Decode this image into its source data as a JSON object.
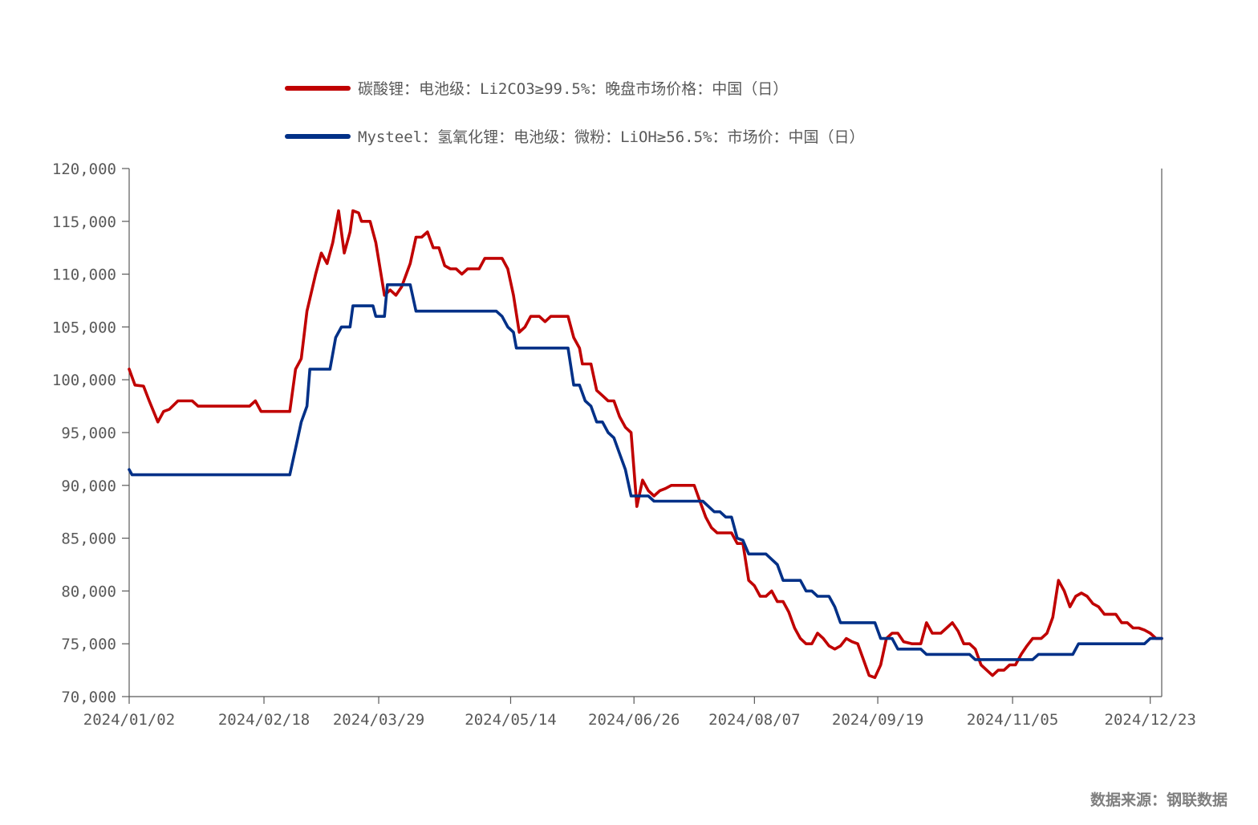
{
  "chart_data": {
    "type": "line",
    "title": "",
    "xlabel": "",
    "ylabel": "",
    "ylim": [
      70000,
      120000
    ],
    "y_ticks": [
      70000,
      75000,
      80000,
      85000,
      90000,
      95000,
      100000,
      105000,
      110000,
      115000,
      120000
    ],
    "y_tick_labels": [
      "70,000",
      "75,000",
      "80,000",
      "85,000",
      "90,000",
      "95,000",
      "100,000",
      "105,000",
      "110,000",
      "115,000",
      "120,000"
    ],
    "x_range": [
      "2024-01-02",
      "2024-12-27"
    ],
    "x_tick_labels": [
      "2024/01/02",
      "2024/02/18",
      "2024/03/29",
      "2024/05/14",
      "2024/06/26",
      "2024/08/07",
      "2024/09/19",
      "2024/11/05",
      "2024/12/23"
    ],
    "x_tick_dates": [
      "2024-01-02",
      "2024-02-18",
      "2024-03-29",
      "2024-05-14",
      "2024-06-26",
      "2024-08-07",
      "2024-09-19",
      "2024-11-05",
      "2024-12-23"
    ],
    "legend_position": "top",
    "grid": false,
    "source": "数据来源：钢联数据",
    "series": [
      {
        "name": "碳酸锂：电池级：Li2CO3≥99.5%：晚盘市场价格：中国（日）",
        "color": "#c00000",
        "points": [
          [
            "2024-01-02",
            101000
          ],
          [
            "2024-01-04",
            99500
          ],
          [
            "2024-01-07",
            99400
          ],
          [
            "2024-01-09",
            98000
          ],
          [
            "2024-01-12",
            96000
          ],
          [
            "2024-01-14",
            97000
          ],
          [
            "2024-01-16",
            97200
          ],
          [
            "2024-01-19",
            98000
          ],
          [
            "2024-01-24",
            98000
          ],
          [
            "2024-01-26",
            97500
          ],
          [
            "2024-02-13",
            97500
          ],
          [
            "2024-02-15",
            98000
          ],
          [
            "2024-02-17",
            97000
          ],
          [
            "2024-02-27",
            97000
          ],
          [
            "2024-02-29",
            101000
          ],
          [
            "2024-03-02",
            102000
          ],
          [
            "2024-03-04",
            106500
          ],
          [
            "2024-03-07",
            110000
          ],
          [
            "2024-03-09",
            112000
          ],
          [
            "2024-03-11",
            111000
          ],
          [
            "2024-03-13",
            113000
          ],
          [
            "2024-03-15",
            116000
          ],
          [
            "2024-03-17",
            112000
          ],
          [
            "2024-03-19",
            114000
          ],
          [
            "2024-03-20",
            116000
          ],
          [
            "2024-03-22",
            115800
          ],
          [
            "2024-03-23",
            115000
          ],
          [
            "2024-03-26",
            115000
          ],
          [
            "2024-03-28",
            113000
          ],
          [
            "2024-03-31",
            108000
          ],
          [
            "2024-04-02",
            108500
          ],
          [
            "2024-04-04",
            108000
          ],
          [
            "2024-04-06",
            108800
          ],
          [
            "2024-04-09",
            111000
          ],
          [
            "2024-04-11",
            113500
          ],
          [
            "2024-04-13",
            113500
          ],
          [
            "2024-04-15",
            114000
          ],
          [
            "2024-04-17",
            112500
          ],
          [
            "2024-04-19",
            112500
          ],
          [
            "2024-04-21",
            110800
          ],
          [
            "2024-04-23",
            110500
          ],
          [
            "2024-04-25",
            110500
          ],
          [
            "2024-04-27",
            110000
          ],
          [
            "2024-04-29",
            110500
          ],
          [
            "2024-05-03",
            110500
          ],
          [
            "2024-05-05",
            111500
          ],
          [
            "2024-05-11",
            111500
          ],
          [
            "2024-05-13",
            110500
          ],
          [
            "2024-05-15",
            108000
          ],
          [
            "2024-05-17",
            104500
          ],
          [
            "2024-05-19",
            105000
          ],
          [
            "2024-05-21",
            106000
          ],
          [
            "2024-05-24",
            106000
          ],
          [
            "2024-05-26",
            105500
          ],
          [
            "2024-05-28",
            106000
          ],
          [
            "2024-06-03",
            106000
          ],
          [
            "2024-06-05",
            104000
          ],
          [
            "2024-06-07",
            103000
          ],
          [
            "2024-06-08",
            101500
          ],
          [
            "2024-06-11",
            101500
          ],
          [
            "2024-06-13",
            99000
          ],
          [
            "2024-06-15",
            98500
          ],
          [
            "2024-06-17",
            98000
          ],
          [
            "2024-06-19",
            98000
          ],
          [
            "2024-06-21",
            96500
          ],
          [
            "2024-06-23",
            95500
          ],
          [
            "2024-06-25",
            95000
          ],
          [
            "2024-06-27",
            88000
          ],
          [
            "2024-06-29",
            90500
          ],
          [
            "2024-07-01",
            89500
          ],
          [
            "2024-07-03",
            89000
          ],
          [
            "2024-07-05",
            89500
          ],
          [
            "2024-07-07",
            89700
          ],
          [
            "2024-07-09",
            90000
          ],
          [
            "2024-07-17",
            90000
          ],
          [
            "2024-07-19",
            88500
          ],
          [
            "2024-07-21",
            87000
          ],
          [
            "2024-07-23",
            86000
          ],
          [
            "2024-07-25",
            85500
          ],
          [
            "2024-07-30",
            85500
          ],
          [
            "2024-08-01",
            84500
          ],
          [
            "2024-08-03",
            84500
          ],
          [
            "2024-08-05",
            81000
          ],
          [
            "2024-08-07",
            80500
          ],
          [
            "2024-08-09",
            79500
          ],
          [
            "2024-08-11",
            79500
          ],
          [
            "2024-08-13",
            80000
          ],
          [
            "2024-08-15",
            79000
          ],
          [
            "2024-08-17",
            79000
          ],
          [
            "2024-08-19",
            78000
          ],
          [
            "2024-08-21",
            76500
          ],
          [
            "2024-08-23",
            75500
          ],
          [
            "2024-08-25",
            75000
          ],
          [
            "2024-08-27",
            75000
          ],
          [
            "2024-08-29",
            76000
          ],
          [
            "2024-08-31",
            75500
          ],
          [
            "2024-09-02",
            74800
          ],
          [
            "2024-09-04",
            74500
          ],
          [
            "2024-09-06",
            74800
          ],
          [
            "2024-09-08",
            75500
          ],
          [
            "2024-09-10",
            75200
          ],
          [
            "2024-09-12",
            75000
          ],
          [
            "2024-09-14",
            73500
          ],
          [
            "2024-09-16",
            72000
          ],
          [
            "2024-09-18",
            71800
          ],
          [
            "2024-09-20",
            73000
          ],
          [
            "2024-09-22",
            75500
          ],
          [
            "2024-09-24",
            76000
          ],
          [
            "2024-09-26",
            76000
          ],
          [
            "2024-09-28",
            75200
          ],
          [
            "2024-10-01",
            75000
          ],
          [
            "2024-10-04",
            75000
          ],
          [
            "2024-10-06",
            77000
          ],
          [
            "2024-10-08",
            76000
          ],
          [
            "2024-10-11",
            76000
          ],
          [
            "2024-10-13",
            76500
          ],
          [
            "2024-10-15",
            77000
          ],
          [
            "2024-10-17",
            76200
          ],
          [
            "2024-10-19",
            75000
          ],
          [
            "2024-10-21",
            75000
          ],
          [
            "2024-10-23",
            74500
          ],
          [
            "2024-10-25",
            73000
          ],
          [
            "2024-10-27",
            72500
          ],
          [
            "2024-10-29",
            72000
          ],
          [
            "2024-10-31",
            72500
          ],
          [
            "2024-11-02",
            72500
          ],
          [
            "2024-11-04",
            73000
          ],
          [
            "2024-11-06",
            73000
          ],
          [
            "2024-11-08",
            74000
          ],
          [
            "2024-11-10",
            74800
          ],
          [
            "2024-11-12",
            75500
          ],
          [
            "2024-11-15",
            75500
          ],
          [
            "2024-11-17",
            76000
          ],
          [
            "2024-11-19",
            77500
          ],
          [
            "2024-11-21",
            81000
          ],
          [
            "2024-11-23",
            80000
          ],
          [
            "2024-11-25",
            78500
          ],
          [
            "2024-11-27",
            79500
          ],
          [
            "2024-11-29",
            79800
          ],
          [
            "2024-12-01",
            79500
          ],
          [
            "2024-12-03",
            78800
          ],
          [
            "2024-12-05",
            78500
          ],
          [
            "2024-12-07",
            77800
          ],
          [
            "2024-12-09",
            77800
          ],
          [
            "2024-12-11",
            77800
          ],
          [
            "2024-12-13",
            77000
          ],
          [
            "2024-12-15",
            77000
          ],
          [
            "2024-12-17",
            76500
          ],
          [
            "2024-12-19",
            76500
          ],
          [
            "2024-12-21",
            76300
          ],
          [
            "2024-12-23",
            76000
          ],
          [
            "2024-12-25",
            75500
          ],
          [
            "2024-12-27",
            75500
          ]
        ]
      },
      {
        "name": "Mysteel：氢氧化锂：电池级：微粉：LiOH≥56.5%：市场价：中国（日）",
        "color": "#003087",
        "points": [
          [
            "2024-01-02",
            91500
          ],
          [
            "2024-01-03",
            91000
          ],
          [
            "2024-02-27",
            91000
          ],
          [
            "2024-02-29",
            93500
          ],
          [
            "2024-03-02",
            96000
          ],
          [
            "2024-03-04",
            97500
          ],
          [
            "2024-03-05",
            101000
          ],
          [
            "2024-03-12",
            101000
          ],
          [
            "2024-03-14",
            104000
          ],
          [
            "2024-03-16",
            105000
          ],
          [
            "2024-03-19",
            105000
          ],
          [
            "2024-03-20",
            107000
          ],
          [
            "2024-03-27",
            107000
          ],
          [
            "2024-03-28",
            106000
          ],
          [
            "2024-03-31",
            106000
          ],
          [
            "2024-04-01",
            109000
          ],
          [
            "2024-04-09",
            109000
          ],
          [
            "2024-04-11",
            106500
          ],
          [
            "2024-05-09",
            106500
          ],
          [
            "2024-05-11",
            106000
          ],
          [
            "2024-05-13",
            105000
          ],
          [
            "2024-05-15",
            104500
          ],
          [
            "2024-05-16",
            103000
          ],
          [
            "2024-06-03",
            103000
          ],
          [
            "2024-06-05",
            99500
          ],
          [
            "2024-06-07",
            99500
          ],
          [
            "2024-06-09",
            98000
          ],
          [
            "2024-06-11",
            97500
          ],
          [
            "2024-06-13",
            96000
          ],
          [
            "2024-06-15",
            96000
          ],
          [
            "2024-06-17",
            95000
          ],
          [
            "2024-06-19",
            94500
          ],
          [
            "2024-06-21",
            93000
          ],
          [
            "2024-06-23",
            91500
          ],
          [
            "2024-06-25",
            89000
          ],
          [
            "2024-07-01",
            89000
          ],
          [
            "2024-07-03",
            88500
          ],
          [
            "2024-07-20",
            88500
          ],
          [
            "2024-07-22",
            88000
          ],
          [
            "2024-07-24",
            87500
          ],
          [
            "2024-07-26",
            87500
          ],
          [
            "2024-07-28",
            87000
          ],
          [
            "2024-07-30",
            87000
          ],
          [
            "2024-08-01",
            85000
          ],
          [
            "2024-08-03",
            84800
          ],
          [
            "2024-08-05",
            83500
          ],
          [
            "2024-08-11",
            83500
          ],
          [
            "2024-08-13",
            83000
          ],
          [
            "2024-08-15",
            82500
          ],
          [
            "2024-08-17",
            81000
          ],
          [
            "2024-08-23",
            81000
          ],
          [
            "2024-08-25",
            80000
          ],
          [
            "2024-08-27",
            80000
          ],
          [
            "2024-08-29",
            79500
          ],
          [
            "2024-09-02",
            79500
          ],
          [
            "2024-09-04",
            78500
          ],
          [
            "2024-09-06",
            77000
          ],
          [
            "2024-09-18",
            77000
          ],
          [
            "2024-09-20",
            75500
          ],
          [
            "2024-09-24",
            75500
          ],
          [
            "2024-09-26",
            74500
          ],
          [
            "2024-10-04",
            74500
          ],
          [
            "2024-10-06",
            74000
          ],
          [
            "2024-10-21",
            74000
          ],
          [
            "2024-10-23",
            73500
          ],
          [
            "2024-11-12",
            73500
          ],
          [
            "2024-11-14",
            74000
          ],
          [
            "2024-11-26",
            74000
          ],
          [
            "2024-11-28",
            75000
          ],
          [
            "2024-12-21",
            75000
          ],
          [
            "2024-12-23",
            75500
          ],
          [
            "2024-12-27",
            75500
          ]
        ]
      }
    ]
  }
}
